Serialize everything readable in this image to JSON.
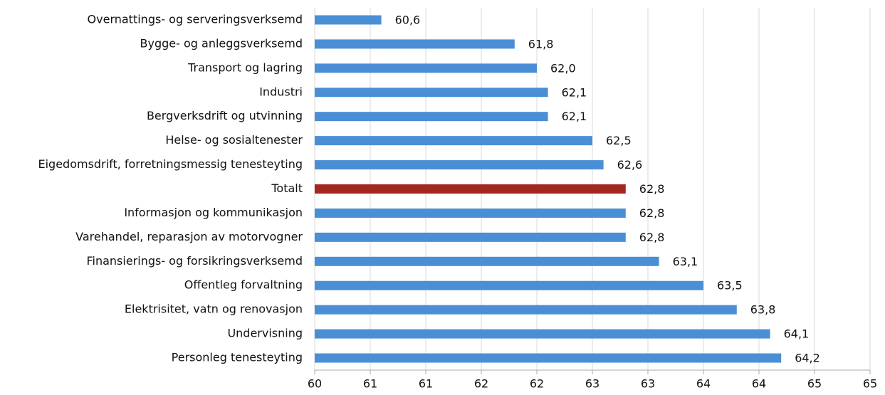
{
  "chart_data": {
    "type": "hbar",
    "categories": [
      "Overnattings- og serveringsverksemd",
      "Bygge- og anleggsverksemd",
      "Transport og lagring",
      "Industri",
      "Bergverksdrift og utvinning",
      "Helse- og sosialtenester",
      "Eigedomsdrift, forretningsmessig tenesteyting",
      "Totalt",
      "Informasjon og kommunikasjon",
      "Varehandel, reparasjon av motorvogner",
      "Finansierings- og forsikringsverksemd",
      "Offentleg forvaltning",
      "Elektrisitet, vatn og renovasjon",
      "Undervisning",
      "Personleg tenesteyting"
    ],
    "values": [
      60.6,
      61.8,
      62.0,
      62.1,
      62.1,
      62.5,
      62.6,
      62.8,
      62.8,
      62.8,
      63.1,
      63.5,
      63.8,
      64.1,
      64.2
    ],
    "value_labels": [
      "60,6",
      "61,8",
      "62,0",
      "62,1",
      "62,1",
      "62,5",
      "62,6",
      "62,8",
      "62,8",
      "62,8",
      "63,1",
      "63,5",
      "63,8",
      "64,1",
      "64,2"
    ],
    "colors": [
      "#4a8fd6",
      "#4a8fd6",
      "#4a8fd6",
      "#4a8fd6",
      "#4a8fd6",
      "#4a8fd6",
      "#4a8fd6",
      "#a5281f",
      "#4a8fd6",
      "#4a8fd6",
      "#4a8fd6",
      "#4a8fd6",
      "#4a8fd6",
      "#4a8fd6",
      "#4a8fd6"
    ],
    "xlim": [
      60,
      65
    ],
    "xticks": [
      60,
      {
        "value": 60.5,
        "label": "61"
      },
      {
        "value": 61,
        "label": "61"
      },
      {
        "value": 61.5,
        "label": "62"
      },
      {
        "value": 62,
        "label": "62"
      },
      {
        "value": 62.5,
        "label": "63"
      },
      {
        "value": 63,
        "label": "63"
      },
      {
        "value": 63.5,
        "label": "64"
      },
      {
        "value": 64,
        "label": "64"
      },
      {
        "value": 64.5,
        "label": "65"
      },
      65
    ],
    "grid": true
  }
}
